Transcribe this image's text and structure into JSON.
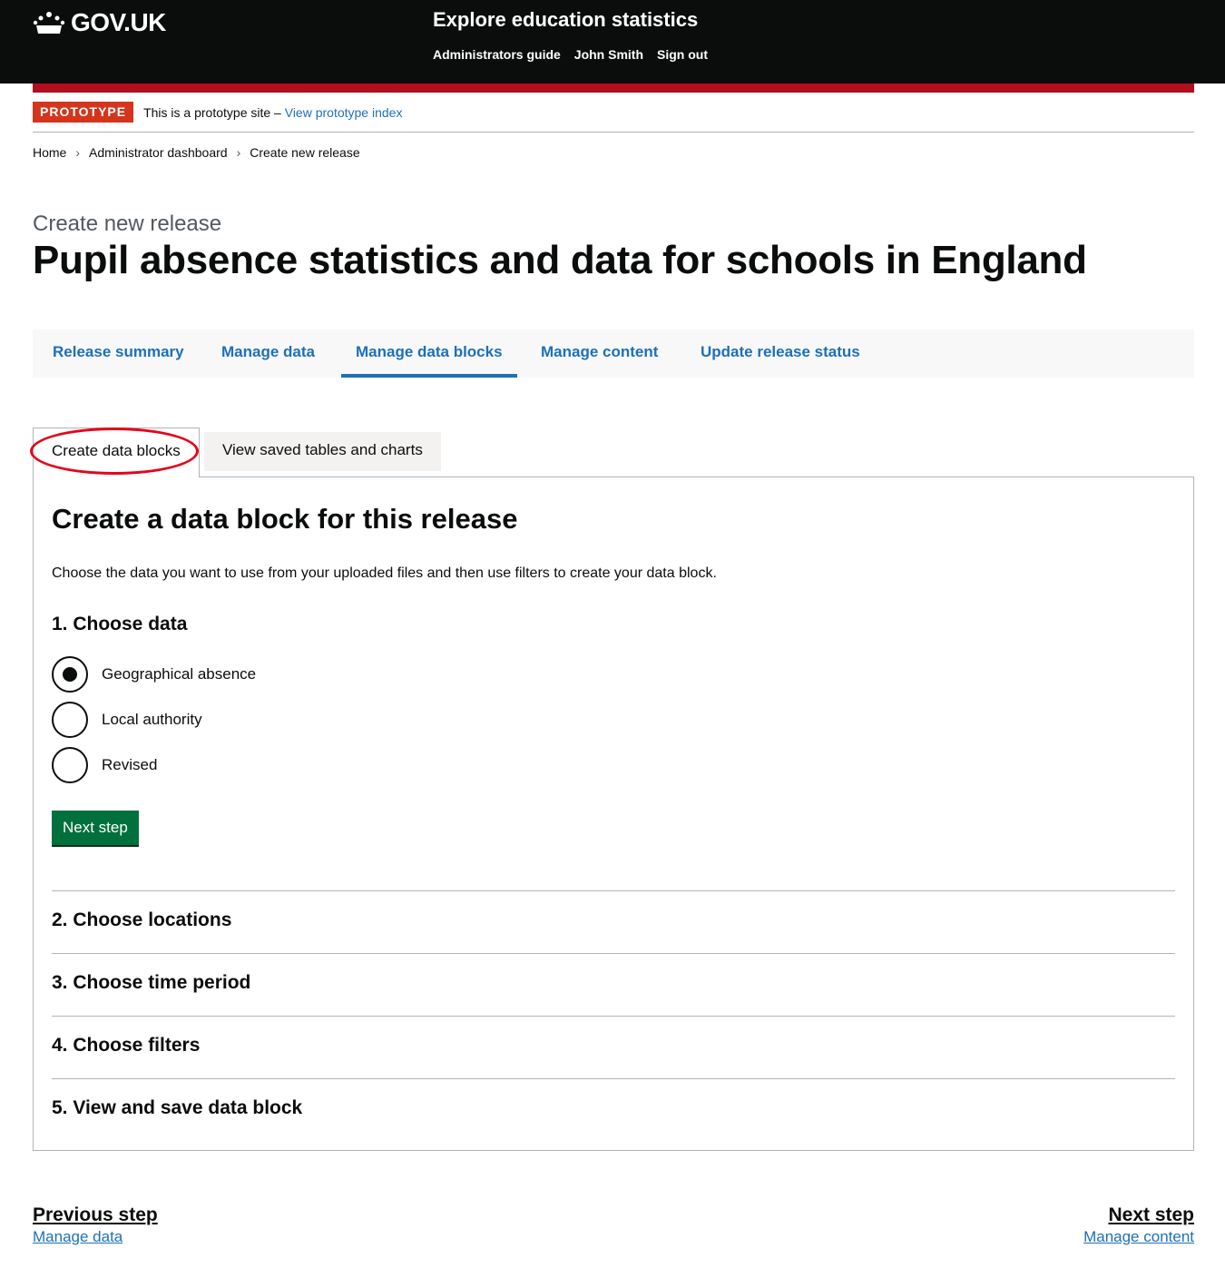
{
  "header": {
    "logo_text": "GOV.UK",
    "service_name": "Explore education statistics",
    "nav": [
      "Administrators guide",
      "John Smith",
      "Sign out"
    ]
  },
  "phase": {
    "tag": "PROTOTYPE",
    "text": "This is a prototype site – ",
    "link": "View prototype index"
  },
  "breadcrumbs": [
    "Home",
    "Administrator dashboard",
    "Create new release"
  ],
  "page": {
    "caption": "Create new release",
    "title": "Pupil absence statistics and data for schools in England"
  },
  "primary_nav": {
    "items": [
      "Release summary",
      "Manage data",
      "Manage data blocks",
      "Manage content",
      "Update release status"
    ],
    "active": "Manage data blocks"
  },
  "tabs": [
    "Create data blocks",
    "View saved tables and charts"
  ],
  "panel": {
    "title": "Create a data block for this release",
    "intro": "Choose the data you want to use from your uploaded files and then use filters to create your data block.",
    "step1": "1. Choose data",
    "options": [
      "Geographical absence",
      "Local authority",
      "Revised"
    ],
    "selected_option": "Geographical absence",
    "next_button": "Next step",
    "steps": [
      "2. Choose locations",
      "3. Choose time period",
      "4. Choose filters",
      "5. View and save data block"
    ]
  },
  "pager": {
    "prev_title": "Previous step",
    "prev_link": "Manage data",
    "next_title": "Next step",
    "next_link": "Manage content"
  },
  "colors": {
    "header_bg": "#0b0c0c",
    "accent_red": "#b10e1e",
    "link_blue": "#1d70b8",
    "button_green": "#00703c",
    "highlight": "#e4041b"
  }
}
